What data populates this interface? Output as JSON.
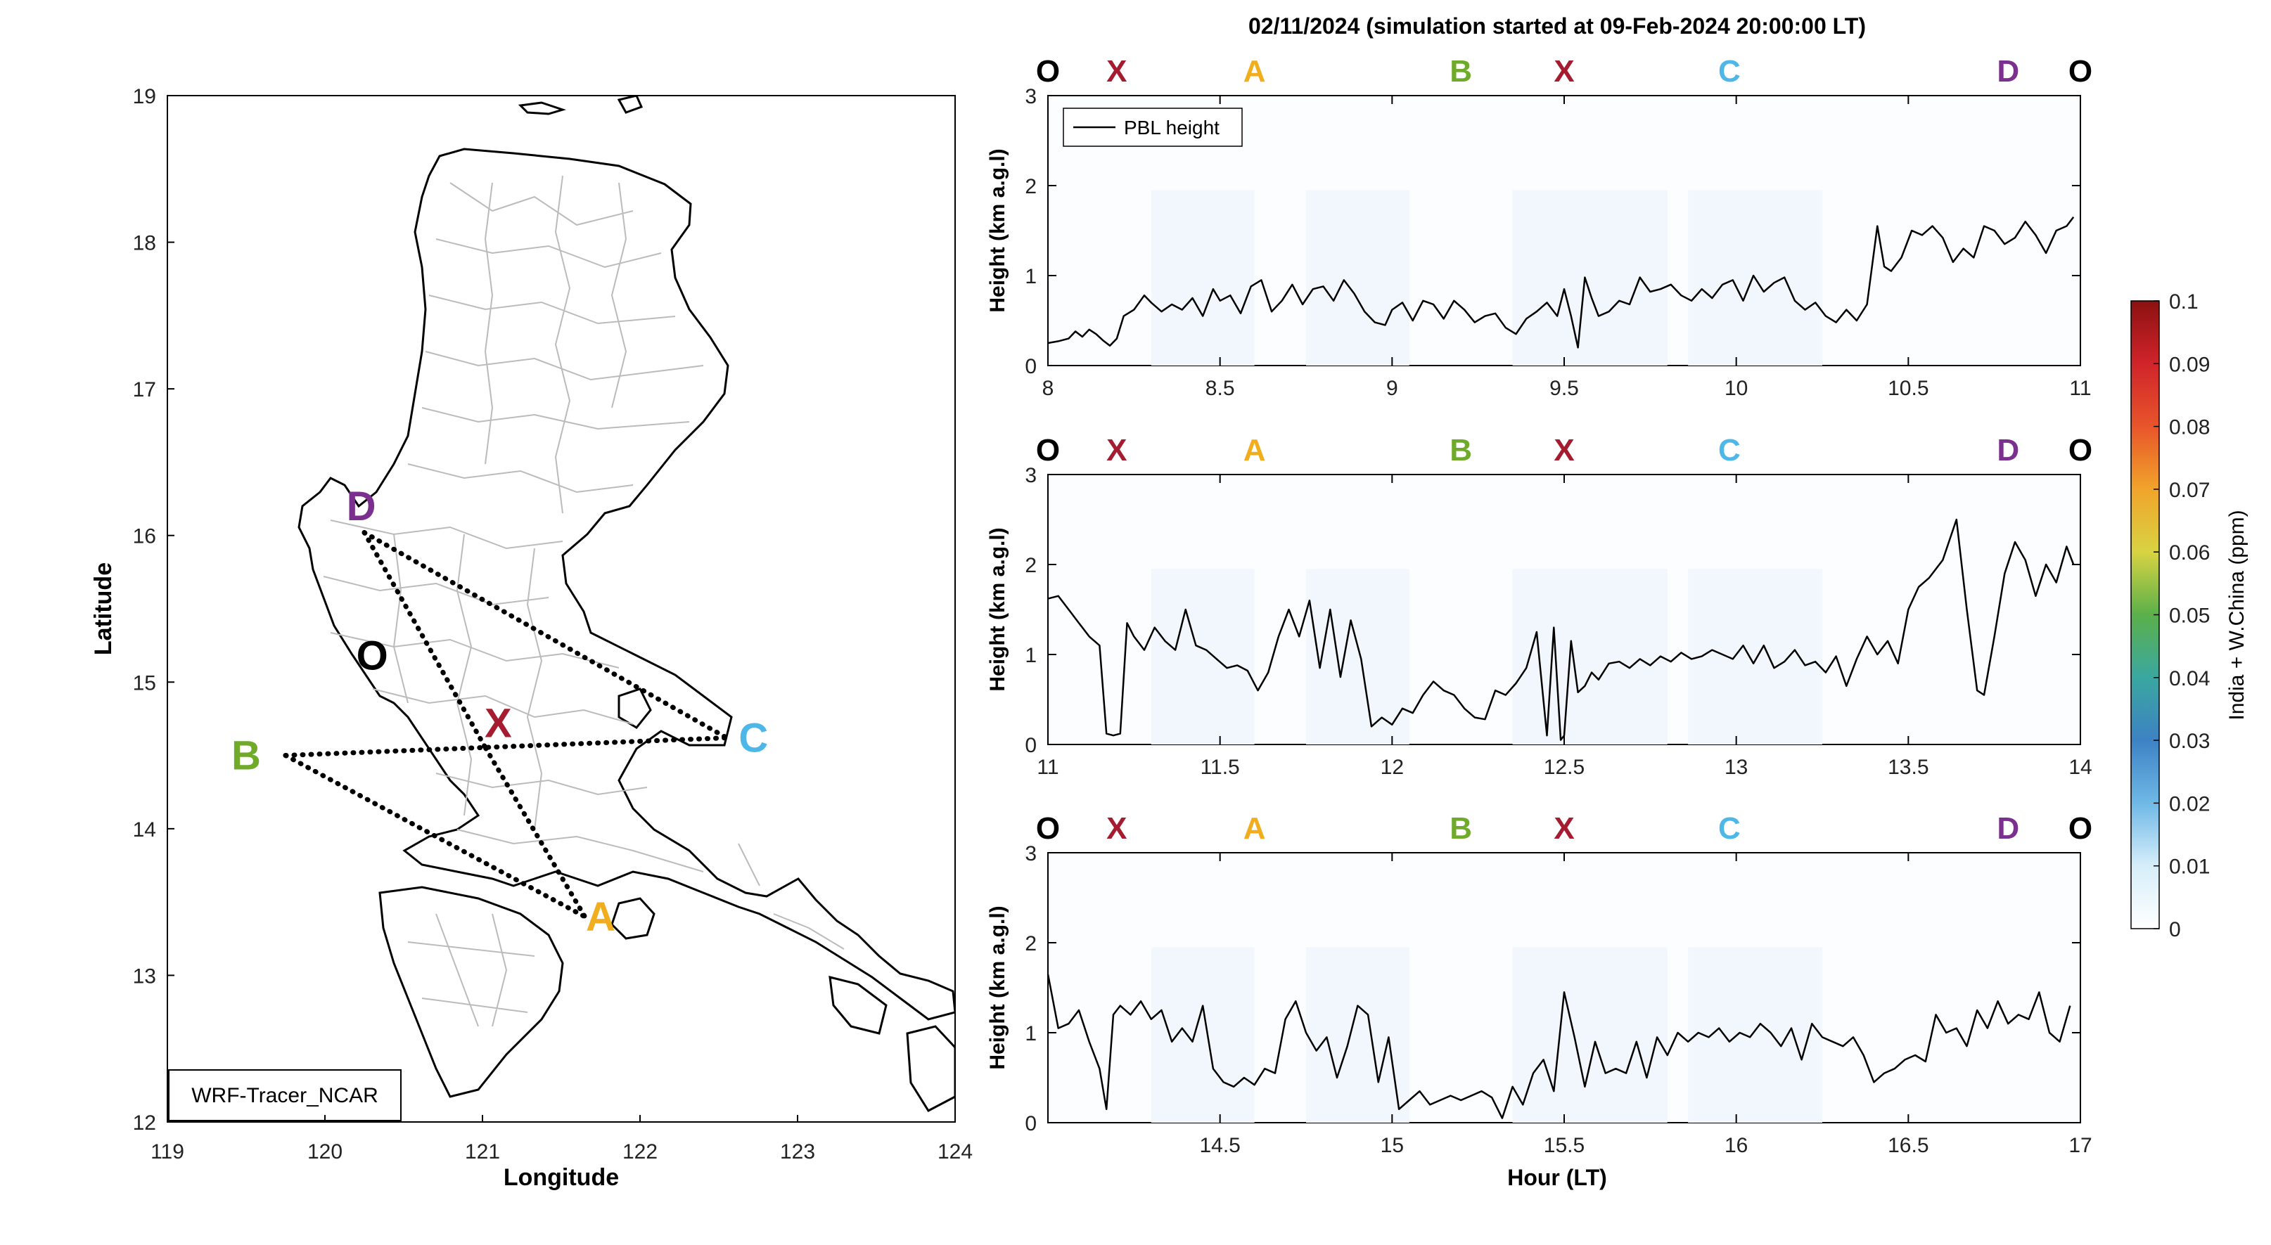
{
  "figure": {
    "title": "02/11/2024 (simulation started at 09-Feb-2024 20:00:00 LT)"
  },
  "colors": {
    "O": "#000000",
    "X": "#A51C30",
    "A": "#F0AE1E",
    "B": "#6FAA2B",
    "C": "#4DB8E8",
    "D": "#7B2F8E",
    "map_borders": "#BBBBBB",
    "coast": "#000000",
    "line": "#000000",
    "tracer_shade": "#F2F7FD"
  },
  "map": {
    "xlabel": "Longitude",
    "ylabel": "Latitude",
    "xlim": [
      119,
      124
    ],
    "ylim": [
      12,
      19
    ],
    "xticks": [
      "119",
      "120",
      "121",
      "122",
      "123",
      "124"
    ],
    "yticks": [
      "12",
      "13",
      "14",
      "15",
      "16",
      "17",
      "18",
      "19"
    ],
    "model_label": "WRF-Tracer_NCAR",
    "route_points": [
      {
        "name": "O",
        "lon": 120.3,
        "lat": 15.15
      },
      {
        "name": "X",
        "lon": 121.02,
        "lat": 14.55
      },
      {
        "name": "A",
        "lon": 121.65,
        "lat": 13.4
      },
      {
        "name": "B",
        "lon": 119.75,
        "lat": 14.5
      },
      {
        "name": "C",
        "lon": 122.55,
        "lat": 14.62
      },
      {
        "name": "D",
        "lon": 120.25,
        "lat": 16.02
      }
    ],
    "route_lines": [
      [
        "D",
        "X"
      ],
      [
        "D",
        "C"
      ],
      [
        "B",
        "C"
      ],
      [
        "B",
        "A"
      ],
      [
        "X",
        "A"
      ]
    ],
    "point_labels": [
      {
        "text": "D",
        "lon": 120.23,
        "lat": 16.2
      },
      {
        "text": "O",
        "lon": 120.3,
        "lat": 15.18
      },
      {
        "text": "X",
        "lon": 121.1,
        "lat": 14.72
      },
      {
        "text": "B",
        "lon": 119.5,
        "lat": 14.5
      },
      {
        "text": "C",
        "lon": 122.72,
        "lat": 14.62
      },
      {
        "text": "A",
        "lon": 121.75,
        "lat": 13.4
      }
    ]
  },
  "colorbar": {
    "label": "India + W.China (ppm)",
    "ticks": [
      "0",
      "0.01",
      "0.02",
      "0.03",
      "0.04",
      "0.05",
      "0.06",
      "0.07",
      "0.08",
      "0.09",
      "0.1"
    ],
    "range": [
      0,
      0.1
    ]
  },
  "chart_data": [
    {
      "type": "line",
      "panel": "top",
      "xlim": [
        8,
        11
      ],
      "ylim": [
        0,
        3
      ],
      "xticks": [
        "8",
        "8.5",
        "9",
        "9.5",
        "10",
        "10.5",
        "11"
      ],
      "yticks": [
        "0",
        "1",
        "2",
        "3"
      ],
      "ylabel": "Height (km a.g.l)",
      "xlabel": "",
      "legend": "PBL height",
      "legend_position": "top-left",
      "segment_markers": [
        {
          "label": "O",
          "x": 8.0
        },
        {
          "label": "X",
          "x": 8.2
        },
        {
          "label": "A",
          "x": 8.6
        },
        {
          "label": "B",
          "x": 9.2
        },
        {
          "label": "X",
          "x": 9.5
        },
        {
          "label": "C",
          "x": 9.98
        },
        {
          "label": "D",
          "x": 10.79
        },
        {
          "label": "O",
          "x": 11.0
        }
      ],
      "series": [
        {
          "name": "PBL height",
          "x": [
            8.0,
            8.03,
            8.06,
            8.08,
            8.1,
            8.12,
            8.14,
            8.16,
            8.18,
            8.2,
            8.22,
            8.25,
            8.28,
            8.3,
            8.33,
            8.36,
            8.39,
            8.42,
            8.45,
            8.48,
            8.5,
            8.53,
            8.56,
            8.59,
            8.62,
            8.65,
            8.68,
            8.71,
            8.74,
            8.77,
            8.8,
            8.83,
            8.86,
            8.89,
            8.92,
            8.95,
            8.98,
            9.0,
            9.03,
            9.06,
            9.09,
            9.12,
            9.15,
            9.18,
            9.21,
            9.24,
            9.27,
            9.3,
            9.33,
            9.36,
            9.39,
            9.42,
            9.45,
            9.48,
            9.5,
            9.52,
            9.54,
            9.56,
            9.58,
            9.6,
            9.63,
            9.66,
            9.69,
            9.72,
            9.75,
            9.78,
            9.81,
            9.84,
            9.87,
            9.9,
            9.93,
            9.96,
            9.99,
            10.02,
            10.05,
            10.08,
            10.11,
            10.14,
            10.17,
            10.2,
            10.23,
            10.26,
            10.29,
            10.32,
            10.35,
            10.38,
            10.41,
            10.43,
            10.45,
            10.48,
            10.51,
            10.54,
            10.57,
            10.6,
            10.63,
            10.66,
            10.69,
            10.72,
            10.75,
            10.78,
            10.81,
            10.84,
            10.87,
            10.9,
            10.93,
            10.96,
            10.98
          ],
          "y": [
            0.25,
            0.27,
            0.3,
            0.38,
            0.32,
            0.4,
            0.35,
            0.28,
            0.22,
            0.3,
            0.55,
            0.62,
            0.78,
            0.7,
            0.6,
            0.68,
            0.62,
            0.75,
            0.55,
            0.85,
            0.72,
            0.78,
            0.58,
            0.88,
            0.95,
            0.6,
            0.72,
            0.9,
            0.68,
            0.85,
            0.88,
            0.72,
            0.95,
            0.8,
            0.6,
            0.48,
            0.45,
            0.62,
            0.7,
            0.5,
            0.72,
            0.68,
            0.52,
            0.72,
            0.62,
            0.48,
            0.55,
            0.58,
            0.42,
            0.35,
            0.52,
            0.6,
            0.7,
            0.55,
            0.85,
            0.55,
            0.2,
            0.98,
            0.75,
            0.55,
            0.6,
            0.72,
            0.68,
            0.98,
            0.82,
            0.85,
            0.9,
            0.78,
            0.72,
            0.85,
            0.75,
            0.9,
            0.95,
            0.72,
            1.0,
            0.82,
            0.92,
            0.98,
            0.72,
            0.62,
            0.7,
            0.55,
            0.48,
            0.62,
            0.5,
            0.68,
            1.55,
            1.1,
            1.05,
            1.2,
            1.5,
            1.45,
            1.55,
            1.42,
            1.15,
            1.3,
            1.2,
            1.55,
            1.5,
            1.35,
            1.42,
            1.6,
            1.45,
            1.25,
            1.5,
            1.55,
            1.65
          ]
        }
      ]
    },
    {
      "type": "line",
      "panel": "middle",
      "xlim": [
        11,
        14
      ],
      "ylim": [
        0,
        3
      ],
      "xticks": [
        "11",
        "11.5",
        "12",
        "12.5",
        "13",
        "13.5",
        "14"
      ],
      "yticks": [
        "0",
        "1",
        "2",
        "3"
      ],
      "ylabel": "Height (km a.g.l)",
      "xlabel": "",
      "segment_markers": [
        {
          "label": "O",
          "x": 11.0
        },
        {
          "label": "X",
          "x": 11.2
        },
        {
          "label": "A",
          "x": 11.6
        },
        {
          "label": "B",
          "x": 12.2
        },
        {
          "label": "X",
          "x": 12.5
        },
        {
          "label": "C",
          "x": 12.98
        },
        {
          "label": "D",
          "x": 13.79
        },
        {
          "label": "O",
          "x": 14.0
        }
      ],
      "series": [
        {
          "name": "PBL height",
          "x": [
            11.0,
            11.03,
            11.06,
            11.09,
            11.12,
            11.15,
            11.17,
            11.19,
            11.21,
            11.23,
            11.25,
            11.28,
            11.31,
            11.34,
            11.37,
            11.4,
            11.43,
            11.46,
            11.49,
            11.52,
            11.55,
            11.58,
            11.61,
            11.64,
            11.67,
            11.7,
            11.73,
            11.76,
            11.79,
            11.82,
            11.85,
            11.88,
            11.91,
            11.94,
            11.97,
            12.0,
            12.03,
            12.06,
            12.09,
            12.12,
            12.15,
            12.18,
            12.21,
            12.24,
            12.27,
            12.3,
            12.33,
            12.36,
            12.39,
            12.42,
            12.45,
            12.47,
            12.49,
            12.5,
            12.52,
            12.54,
            12.56,
            12.58,
            12.6,
            12.63,
            12.66,
            12.69,
            12.72,
            12.75,
            12.78,
            12.81,
            12.84,
            12.87,
            12.9,
            12.93,
            12.96,
            12.99,
            13.02,
            13.05,
            13.08,
            13.11,
            13.14,
            13.17,
            13.2,
            13.23,
            13.26,
            13.29,
            13.32,
            13.35,
            13.38,
            13.41,
            13.44,
            13.47,
            13.5,
            13.53,
            13.56,
            13.6,
            13.64,
            13.67,
            13.7,
            13.72,
            13.75,
            13.78,
            13.81,
            13.84,
            13.87,
            13.9,
            13.93,
            13.96,
            13.98
          ],
          "y": [
            1.62,
            1.65,
            1.5,
            1.35,
            1.2,
            1.1,
            0.12,
            0.1,
            0.12,
            1.35,
            1.2,
            1.05,
            1.3,
            1.15,
            1.05,
            1.5,
            1.1,
            1.05,
            0.95,
            0.85,
            0.88,
            0.82,
            0.6,
            0.8,
            1.2,
            1.5,
            1.2,
            1.6,
            0.85,
            1.5,
            0.75,
            1.38,
            0.95,
            0.2,
            0.3,
            0.22,
            0.4,
            0.35,
            0.55,
            0.7,
            0.6,
            0.55,
            0.4,
            0.3,
            0.28,
            0.6,
            0.55,
            0.68,
            0.85,
            1.25,
            0.1,
            1.3,
            0.05,
            0.1,
            1.15,
            0.58,
            0.65,
            0.8,
            0.72,
            0.9,
            0.92,
            0.85,
            0.95,
            0.88,
            0.98,
            0.92,
            1.02,
            0.95,
            0.98,
            1.05,
            1.0,
            0.95,
            1.1,
            0.9,
            1.1,
            0.85,
            0.92,
            1.05,
            0.88,
            0.92,
            0.8,
            0.98,
            0.65,
            0.95,
            1.2,
            1.0,
            1.15,
            0.9,
            1.5,
            1.75,
            1.85,
            2.05,
            2.5,
            1.5,
            0.6,
            0.55,
            1.2,
            1.9,
            2.25,
            2.05,
            1.65,
            2.0,
            1.8,
            2.2,
            2.0
          ]
        }
      ]
    },
    {
      "type": "line",
      "panel": "bottom",
      "xlim": [
        14,
        17
      ],
      "ylim": [
        0,
        3
      ],
      "xticks": [
        "14.5",
        "15",
        "15.5",
        "16",
        "16.5",
        "17"
      ],
      "yticks": [
        "0",
        "1",
        "2",
        "3"
      ],
      "ylabel": "Height (km a.g.l)",
      "xlabel": "Hour (LT)",
      "segment_markers": [
        {
          "label": "O",
          "x": 14.0
        },
        {
          "label": "X",
          "x": 14.2
        },
        {
          "label": "A",
          "x": 14.6
        },
        {
          "label": "B",
          "x": 15.2
        },
        {
          "label": "X",
          "x": 15.5
        },
        {
          "label": "C",
          "x": 15.98
        },
        {
          "label": "D",
          "x": 16.79
        },
        {
          "label": "O",
          "x": 17.0
        }
      ],
      "series": [
        {
          "name": "PBL height",
          "x": [
            14.0,
            14.03,
            14.06,
            14.09,
            14.12,
            14.15,
            14.17,
            14.19,
            14.21,
            14.24,
            14.27,
            14.3,
            14.33,
            14.36,
            14.39,
            14.42,
            14.45,
            14.48,
            14.51,
            14.54,
            14.57,
            14.6,
            14.63,
            14.66,
            14.69,
            14.72,
            14.75,
            14.78,
            14.81,
            14.84,
            14.87,
            14.9,
            14.93,
            14.96,
            14.99,
            15.02,
            15.05,
            15.08,
            15.11,
            15.14,
            15.17,
            15.2,
            15.23,
            15.26,
            15.29,
            15.32,
            15.35,
            15.38,
            15.41,
            15.44,
            15.47,
            15.5,
            15.53,
            15.56,
            15.59,
            15.62,
            15.65,
            15.68,
            15.71,
            15.74,
            15.77,
            15.8,
            15.83,
            15.86,
            15.89,
            15.92,
            15.95,
            15.98,
            16.01,
            16.04,
            16.07,
            16.1,
            16.13,
            16.16,
            16.19,
            16.22,
            16.25,
            16.28,
            16.31,
            16.34,
            16.37,
            16.4,
            16.43,
            16.46,
            16.49,
            16.52,
            16.55,
            16.58,
            16.61,
            16.64,
            16.67,
            16.7,
            16.73,
            16.76,
            16.79,
            16.82,
            16.85,
            16.88,
            16.91,
            16.94,
            16.97
          ],
          "y": [
            1.65,
            1.05,
            1.1,
            1.25,
            0.9,
            0.6,
            0.15,
            1.2,
            1.3,
            1.2,
            1.35,
            1.15,
            1.25,
            0.9,
            1.05,
            0.9,
            1.3,
            0.6,
            0.45,
            0.4,
            0.5,
            0.42,
            0.6,
            0.55,
            1.15,
            1.35,
            1.0,
            0.8,
            0.95,
            0.5,
            0.85,
            1.3,
            1.2,
            0.45,
            0.95,
            0.15,
            0.25,
            0.35,
            0.2,
            0.25,
            0.3,
            0.25,
            0.3,
            0.35,
            0.28,
            0.05,
            0.4,
            0.2,
            0.55,
            0.7,
            0.35,
            1.45,
            0.95,
            0.4,
            0.9,
            0.55,
            0.6,
            0.55,
            0.9,
            0.5,
            0.95,
            0.75,
            1.0,
            0.9,
            1.0,
            0.95,
            1.05,
            0.9,
            1.0,
            0.95,
            1.1,
            1.0,
            0.85,
            1.05,
            0.7,
            1.1,
            0.95,
            0.9,
            0.85,
            0.95,
            0.75,
            0.45,
            0.55,
            0.6,
            0.7,
            0.75,
            0.68,
            1.2,
            1.0,
            1.05,
            0.85,
            1.25,
            1.05,
            1.35,
            1.1,
            1.2,
            1.15,
            1.45,
            1.0,
            0.9,
            1.3
          ]
        }
      ]
    }
  ]
}
